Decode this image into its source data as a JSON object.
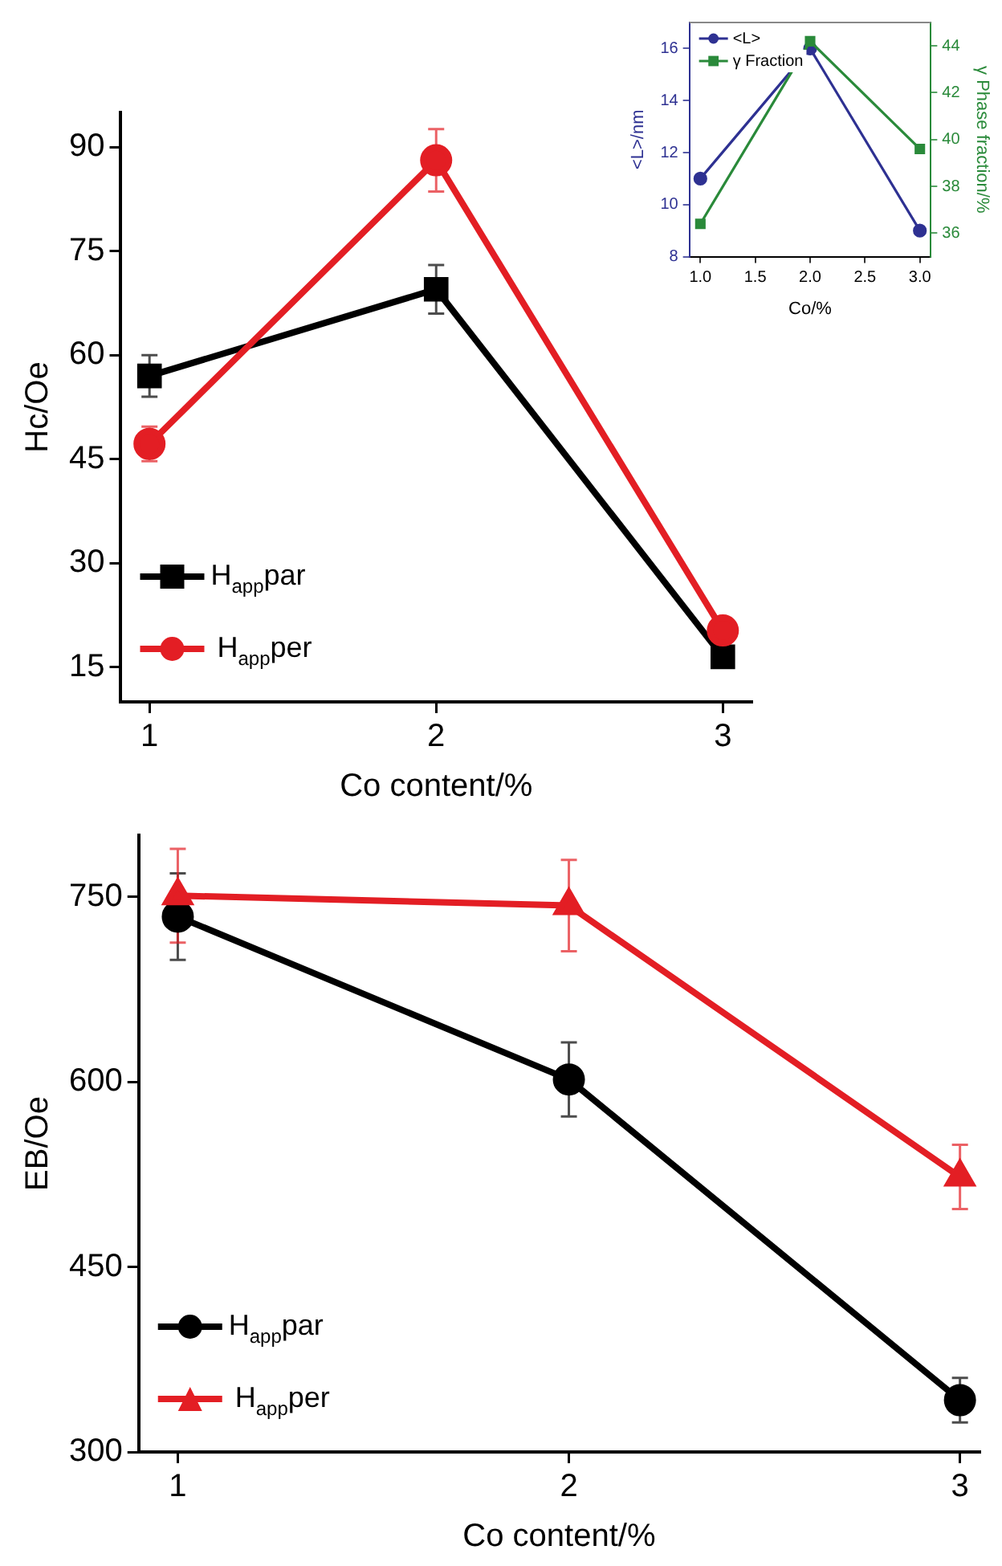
{
  "chart_data": [
    {
      "type": "line",
      "xlabel": "Co content/%",
      "ylabel": "Hc/Oe",
      "x": [
        1,
        2,
        3
      ],
      "xlim": [
        0.9,
        3.1
      ],
      "xticks": [
        1,
        2,
        3
      ],
      "ylim": [
        10,
        95
      ],
      "yticks": [
        15,
        30,
        45,
        60,
        75,
        90
      ],
      "legend": "bottom left",
      "series": [
        {
          "name": "H$_{app}$par",
          "color": "#000000",
          "marker": "square",
          "values": [
            57,
            69.5,
            16.5
          ],
          "errors": [
            3,
            3.5,
            null
          ]
        },
        {
          "name": "H$_{app}$per",
          "color": "#e31e24",
          "marker": "circle",
          "values": [
            47.2,
            88.1,
            20.3
          ],
          "errors": [
            2.5,
            4.5,
            null
          ]
        }
      ]
    },
    {
      "type": "line",
      "xlabel": "Co/%",
      "ylabel": "<L>/nm",
      "y2label": "γ Phase fraction/%",
      "x": [
        1,
        2,
        3
      ],
      "xlim": [
        0.9,
        3.1
      ],
      "xticks": [
        {
          "value": 1,
          "label": "1.0"
        },
        {
          "value": 1.5,
          "label": "1.5"
        },
        {
          "value": 2,
          "label": "2.0"
        },
        {
          "value": 2.5,
          "label": "2.5"
        },
        {
          "value": 3,
          "label": "3.0"
        }
      ],
      "ylim": [
        8,
        17
      ],
      "yticks": [
        8,
        10,
        12,
        14,
        16
      ],
      "y2lim": [
        35,
        45
      ],
      "y2ticks": [
        36,
        38,
        40,
        42,
        44
      ],
      "legend": "top left",
      "series": [
        {
          "name": "<L>",
          "color": "#2e3192",
          "marker": "circle",
          "values": [
            11,
            16,
            9
          ]
        },
        {
          "name": "γ Fraction",
          "color": "#2a8a3a",
          "marker": "square",
          "axis": "y2",
          "values": [
            36.4,
            44.2,
            39.6
          ]
        }
      ]
    },
    {
      "type": "line",
      "xlabel": "Co content/%",
      "ylabel": "EB/Oe",
      "x": [
        1,
        2,
        3
      ],
      "xlim": [
        0.9,
        3.05
      ],
      "xticks": [
        1,
        2,
        3
      ],
      "ylim": [
        300,
        800
      ],
      "yticks": [
        300,
        450,
        600,
        750
      ],
      "legend": "bottom left",
      "series": [
        {
          "name": "H$_{app}$par",
          "color": "#000000",
          "marker": "circle",
          "values": [
            734,
            602,
            342
          ],
          "errors": [
            35,
            30,
            18
          ]
        },
        {
          "name": "H$_{app}$per",
          "color": "#e31e24",
          "marker": "triangle",
          "values": [
            751,
            743,
            523
          ],
          "errors": [
            38,
            37,
            26
          ]
        }
      ]
    }
  ]
}
